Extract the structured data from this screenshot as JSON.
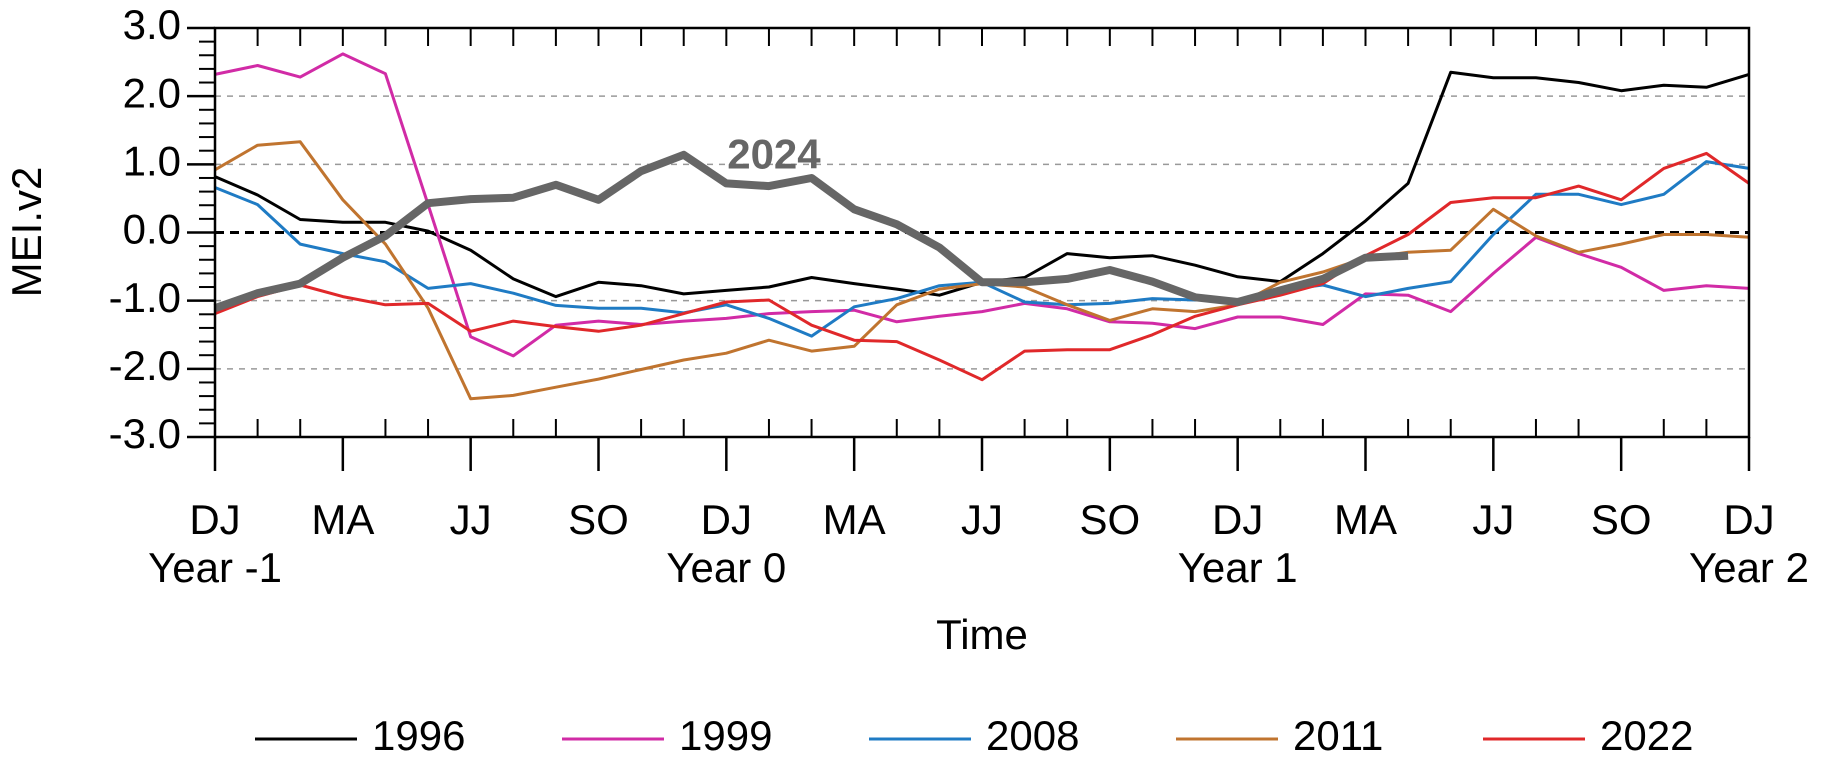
{
  "chart_data": {
    "type": "line",
    "y_label": "MEI.v2",
    "x_label": "Time",
    "categories": [
      "DJ",
      null,
      null,
      "MA",
      null,
      null,
      "JJ",
      null,
      null,
      "SO",
      null,
      null,
      "DJ",
      null,
      null,
      "MA",
      null,
      null,
      "JJ",
      null,
      null,
      "SO",
      null,
      null,
      "DJ",
      null,
      null,
      "MA",
      null,
      null,
      "JJ",
      null,
      null,
      "SO",
      null,
      null,
      "DJ"
    ],
    "category_groups": [
      "Year -1",
      null,
      null,
      null,
      null,
      null,
      null,
      null,
      null,
      null,
      null,
      null,
      "Year 0",
      null,
      null,
      null,
      null,
      null,
      null,
      null,
      null,
      null,
      null,
      null,
      "Year 1",
      null,
      null,
      null,
      null,
      null,
      null,
      null,
      null,
      null,
      null,
      null,
      "Year 2"
    ],
    "ylim": [
      -3,
      3
    ],
    "yticks": [
      {
        "value": -3,
        "label": "-3.0"
      },
      {
        "value": -2,
        "label": "-2.0"
      },
      {
        "value": -1,
        "label": "-1.0"
      },
      {
        "value": 0,
        "label": "0.0"
      },
      {
        "value": 1,
        "label": "1.0"
      },
      {
        "value": 2,
        "label": "2.0"
      },
      {
        "value": 3,
        "label": "3.0"
      }
    ],
    "yminorticks": [
      -2.8,
      -2.6,
      -2.4,
      -2.2,
      -1.8,
      -1.6,
      -1.4,
      -1.2,
      -0.8,
      -0.6,
      -0.4,
      -0.2,
      0.2,
      0.4,
      0.6,
      0.8,
      1.2,
      1.4,
      1.6,
      1.8,
      2.2,
      2.4,
      2.6,
      2.8
    ],
    "grid": true,
    "zero_line": true,
    "legend": "bottom",
    "series": [
      {
        "name": "1996",
        "color": "#000000",
        "values": [
          0.82,
          0.55,
          0.19,
          0.15,
          0.15,
          0.02,
          -0.26,
          -0.68,
          -0.94,
          -0.73,
          -0.78,
          -0.9,
          -0.85,
          -0.8,
          -0.66,
          -0.75,
          -0.83,
          -0.92,
          -0.73,
          -0.66,
          -0.31,
          -0.37,
          -0.34,
          -0.48,
          -0.65,
          -0.72,
          -0.31,
          0.17,
          0.72,
          2.35,
          2.27,
          2.27,
          2.2,
          2.08,
          2.16,
          2.13,
          2.32
        ]
      },
      {
        "name": "1999",
        "color": "#d12ba6",
        "values": [
          2.32,
          2.45,
          2.28,
          2.62,
          2.33,
          0.41,
          -1.53,
          -1.81,
          -1.36,
          -1.3,
          -1.35,
          -1.3,
          -1.26,
          -1.19,
          -1.16,
          -1.14,
          -1.31,
          -1.23,
          -1.16,
          -1.04,
          -1.12,
          -1.31,
          -1.33,
          -1.41,
          -1.24,
          -1.24,
          -1.35,
          -0.9,
          -0.92,
          -1.16,
          -0.6,
          -0.07,
          -0.31,
          -0.51,
          -0.85,
          -0.78,
          -0.82
        ]
      },
      {
        "name": "2008",
        "color": "#1f7bc4",
        "values": [
          0.66,
          0.41,
          -0.17,
          -0.31,
          -0.43,
          -0.82,
          -0.75,
          -0.89,
          -1.07,
          -1.11,
          -1.11,
          -1.18,
          -1.06,
          -1.26,
          -1.52,
          -1.09,
          -0.97,
          -0.78,
          -0.73,
          -1.02,
          -1.06,
          -1.04,
          -0.97,
          -0.99,
          -0.99,
          -0.85,
          -0.77,
          -0.94,
          -0.82,
          -0.72,
          -0.03,
          0.56,
          0.56,
          0.41,
          0.56,
          1.04,
          0.94
        ]
      },
      {
        "name": "2011",
        "color": "#c0742f",
        "values": [
          0.92,
          1.28,
          1.33,
          0.48,
          -0.17,
          -1.11,
          -2.44,
          -2.39,
          -2.27,
          -2.15,
          -2.01,
          -1.87,
          -1.77,
          -1.58,
          -1.74,
          -1.67,
          -1.06,
          -0.83,
          -0.75,
          -0.8,
          -1.06,
          -1.29,
          -1.12,
          -1.16,
          -1.06,
          -0.73,
          -0.58,
          -0.37,
          -0.29,
          -0.26,
          0.34,
          -0.05,
          -0.29,
          -0.17,
          -0.03,
          -0.03,
          -0.07
        ]
      },
      {
        "name": "2022",
        "color": "#e0282a",
        "values": [
          -1.19,
          -0.94,
          -0.77,
          -0.94,
          -1.06,
          -1.04,
          -1.45,
          -1.3,
          -1.38,
          -1.45,
          -1.36,
          -1.19,
          -1.02,
          -0.99,
          -1.36,
          -1.58,
          -1.6,
          -1.87,
          -2.16,
          -1.74,
          -1.72,
          -1.72,
          -1.5,
          -1.23,
          -1.06,
          -0.92,
          -0.75,
          -0.34,
          -0.03,
          0.44,
          0.51,
          0.51,
          0.68,
          0.48,
          0.94,
          1.16,
          0.72
        ]
      },
      {
        "name": "2024",
        "color": "#666666",
        "show_in_legend": false,
        "values": [
          -1.11,
          -0.89,
          -0.75,
          -0.37,
          -0.05,
          0.43,
          0.49,
          0.51,
          0.7,
          0.48,
          0.9,
          1.14,
          0.72,
          0.68,
          0.8,
          0.34,
          0.12,
          -0.22,
          -0.73,
          -0.73,
          -0.68,
          -0.55,
          -0.72,
          -0.95,
          -1.02,
          -0.85,
          -0.68,
          -0.37,
          -0.34,
          null,
          null,
          null,
          null,
          null,
          null,
          null,
          null
        ]
      }
    ]
  }
}
